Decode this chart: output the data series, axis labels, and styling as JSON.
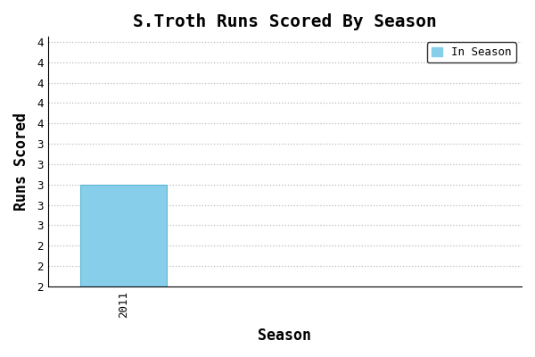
{
  "title": "S.Troth Runs Scored By Season",
  "xlabel": "Season",
  "ylabel": "Runs Scored",
  "seasons": [
    2011
  ],
  "values": [
    3
  ],
  "bar_color": "#87CEEB",
  "bar_edgecolor": "#5bb8d4",
  "ylim_min": 2.0,
  "ylim_max": 4.45,
  "xlim_min": 2010.3,
  "xlim_max": 2014.7,
  "bar_width": 0.8,
  "legend_label": "In Season",
  "background_color": "#ffffff",
  "grid_color": "#bbbbbb",
  "title_fontsize": 14,
  "label_fontsize": 12,
  "tick_fontsize": 9,
  "font_family": "monospace",
  "yticks": [
    2.0,
    2.2,
    2.4,
    2.6,
    2.8,
    3.0,
    3.2,
    3.4,
    3.6,
    3.8,
    4.0,
    4.2,
    4.4
  ]
}
